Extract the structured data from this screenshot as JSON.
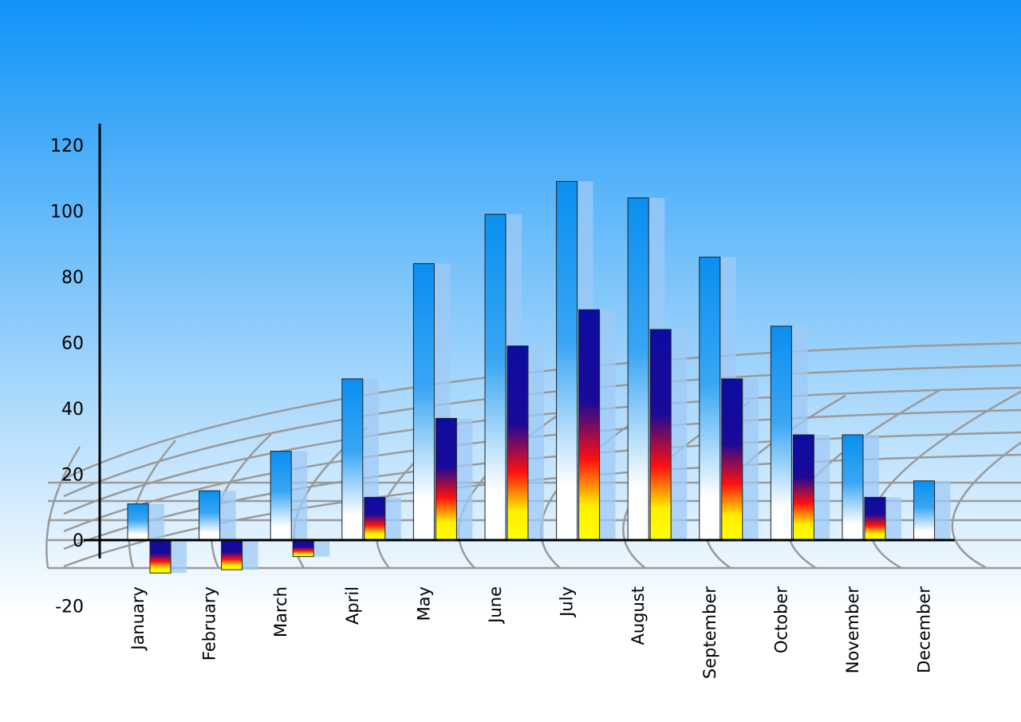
{
  "chart_data": {
    "type": "bar",
    "title": "",
    "xlabel": "",
    "ylabel": "",
    "ylim": [
      -20,
      120
    ],
    "yticks": [
      "120",
      "100",
      "80",
      "60",
      "40",
      "20",
      "0",
      "-20"
    ],
    "categories": [
      "January",
      "February",
      "March",
      "April",
      "May",
      "June",
      "July",
      "August",
      "September",
      "October",
      "November",
      "December"
    ],
    "series": [
      {
        "values": [
          11,
          15,
          27,
          49,
          84,
          99,
          109,
          104,
          86,
          65,
          32,
          18
        ],
        "color": "#0a8ff0"
      },
      {
        "values": [
          -10,
          -9,
          -5,
          13,
          37,
          59,
          70,
          64,
          49,
          32,
          13,
          null
        ],
        "color": "#1010a0"
      }
    ],
    "grid": false,
    "legend": "none",
    "colors": {
      "background_top": "#0f93f7",
      "background_bottom": "#ffffff",
      "axis": "#000000",
      "shadow": "#9fcaf5"
    }
  }
}
